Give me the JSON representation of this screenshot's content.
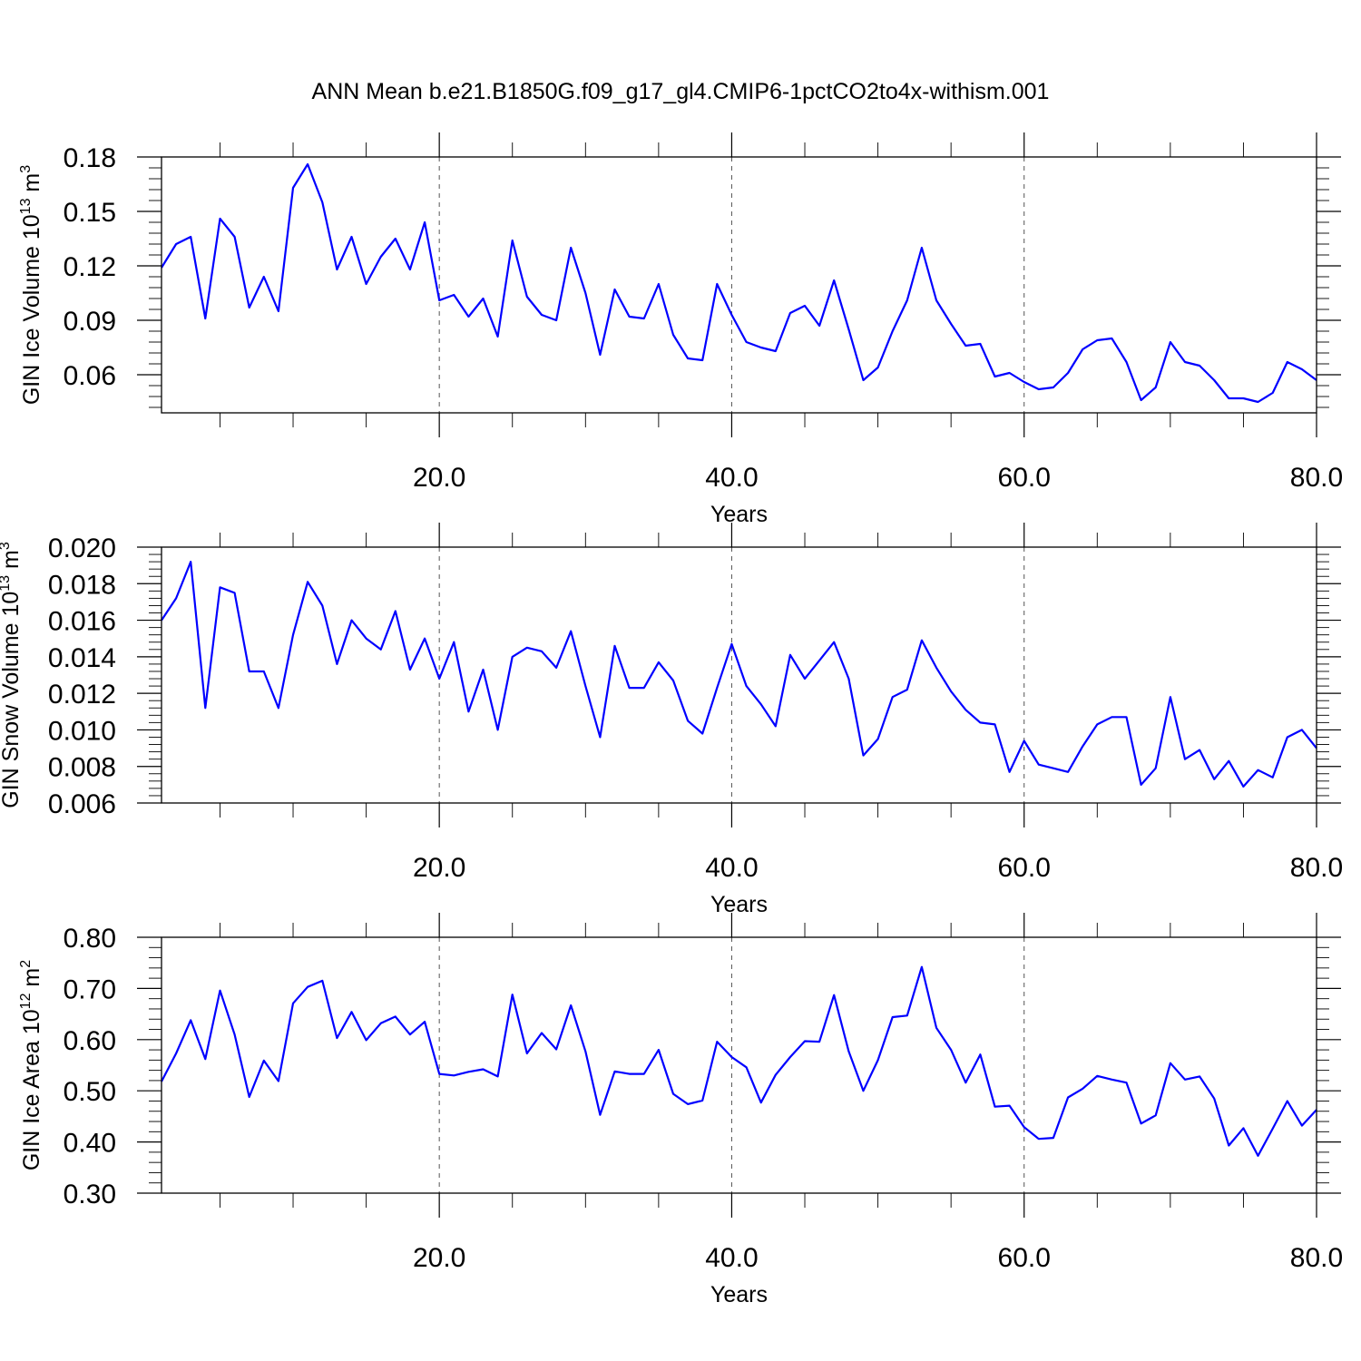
{
  "title": "ANN Mean b.e21.B1850G.f09_g17_gl4.CMIP6-1pctCO2to4x-withism.001",
  "chart_data": [
    {
      "type": "line",
      "ylabel": "GIN Ice Volume 10",
      "ylabel_exp": "13",
      "ylabel_unit": "m",
      "ylabel_unit_exp": "3",
      "xlabel": "Years",
      "xlim": [
        1,
        80
      ],
      "ylim": [
        0.039,
        0.18
      ],
      "x_ticks": [
        "20.0",
        "40.0",
        "60.0",
        "80.0"
      ],
      "y_ticks": [
        "0.06",
        "0.09",
        "0.12",
        "0.15",
        "0.18"
      ],
      "series": [
        {
          "color": "#0000ff",
          "values": [
            0.119,
            0.132,
            0.136,
            0.091,
            0.146,
            0.136,
            0.097,
            0.114,
            0.095,
            0.163,
            0.176,
            0.155,
            0.118,
            0.136,
            0.11,
            0.125,
            0.135,
            0.118,
            0.144,
            0.101,
            0.104,
            0.092,
            0.102,
            0.081,
            0.134,
            0.103,
            0.093,
            0.09,
            0.13,
            0.105,
            0.071,
            0.107,
            0.092,
            0.091,
            0.11,
            0.082,
            0.069,
            0.068,
            0.11,
            0.093,
            0.078,
            0.075,
            0.073,
            0.094,
            0.098,
            0.087,
            0.112,
            0.085,
            0.057,
            0.064,
            0.084,
            0.101,
            0.13,
            0.101,
            0.088,
            0.076,
            0.077,
            0.059,
            0.061,
            0.056,
            0.052,
            0.053,
            0.061,
            0.074,
            0.079,
            0.08,
            0.067,
            0.046,
            0.053,
            0.078,
            0.067,
            0.065,
            0.057,
            0.047,
            0.047,
            0.045,
            0.05,
            0.067,
            0.063,
            0.057
          ]
        }
      ]
    },
    {
      "type": "line",
      "ylabel": "GIN Snow Volume 10",
      "ylabel_exp": "13",
      "ylabel_unit": "m",
      "ylabel_unit_exp": "3",
      "xlabel": "Years",
      "xlim": [
        1,
        80
      ],
      "ylim": [
        0.006,
        0.02
      ],
      "x_ticks": [
        "20.0",
        "40.0",
        "60.0",
        "80.0"
      ],
      "y_ticks": [
        "0.006",
        "0.008",
        "0.010",
        "0.012",
        "0.014",
        "0.016",
        "0.018",
        "0.020"
      ],
      "series": [
        {
          "color": "#0000ff",
          "values": [
            0.016,
            0.0172,
            0.0192,
            0.0112,
            0.0178,
            0.0175,
            0.0132,
            0.0132,
            0.0112,
            0.0152,
            0.0181,
            0.0168,
            0.0136,
            0.016,
            0.015,
            0.0144,
            0.0165,
            0.0133,
            0.015,
            0.0128,
            0.0148,
            0.011,
            0.0133,
            0.01,
            0.014,
            0.0145,
            0.0143,
            0.0134,
            0.0154,
            0.0124,
            0.0096,
            0.0146,
            0.0123,
            0.0123,
            0.0137,
            0.0127,
            0.0105,
            0.0098,
            0.0123,
            0.0147,
            0.0124,
            0.0114,
            0.0102,
            0.0141,
            0.0128,
            0.0138,
            0.0148,
            0.0128,
            0.0086,
            0.0095,
            0.0118,
            0.0122,
            0.0149,
            0.0134,
            0.0121,
            0.0111,
            0.0104,
            0.0103,
            0.0077,
            0.0094,
            0.0081,
            0.0079,
            0.0077,
            0.0091,
            0.0103,
            0.0107,
            0.0107,
            0.007,
            0.0079,
            0.0118,
            0.0084,
            0.0089,
            0.0073,
            0.0083,
            0.0069,
            0.0078,
            0.0074,
            0.0096,
            0.01,
            0.009
          ]
        }
      ]
    },
    {
      "type": "line",
      "ylabel": "GIN Ice Area 10",
      "ylabel_exp": "12",
      "ylabel_unit": "m",
      "ylabel_unit_exp": "2",
      "xlabel": "Years",
      "xlim": [
        1,
        80
      ],
      "ylim": [
        0.3,
        0.8
      ],
      "x_ticks": [
        "20.0",
        "40.0",
        "60.0",
        "80.0"
      ],
      "y_ticks": [
        "0.30",
        "0.40",
        "0.50",
        "0.60",
        "0.70",
        "0.80"
      ],
      "series": [
        {
          "color": "#0000ff",
          "values": [
            0.518,
            0.573,
            0.638,
            0.562,
            0.696,
            0.61,
            0.488,
            0.559,
            0.519,
            0.671,
            0.703,
            0.715,
            0.603,
            0.654,
            0.599,
            0.632,
            0.645,
            0.61,
            0.635,
            0.533,
            0.53,
            0.537,
            0.542,
            0.528,
            0.688,
            0.573,
            0.613,
            0.581,
            0.667,
            0.577,
            0.453,
            0.538,
            0.533,
            0.533,
            0.58,
            0.494,
            0.474,
            0.481,
            0.596,
            0.566,
            0.546,
            0.477,
            0.531,
            0.566,
            0.597,
            0.596,
            0.687,
            0.577,
            0.5,
            0.56,
            0.644,
            0.647,
            0.742,
            0.623,
            0.58,
            0.516,
            0.571,
            0.469,
            0.471,
            0.429,
            0.406,
            0.408,
            0.487,
            0.504,
            0.529,
            0.522,
            0.516,
            0.436,
            0.452,
            0.554,
            0.522,
            0.528,
            0.485,
            0.393,
            0.427,
            0.373,
            0.426,
            0.48,
            0.432,
            0.463
          ]
        }
      ]
    }
  ]
}
